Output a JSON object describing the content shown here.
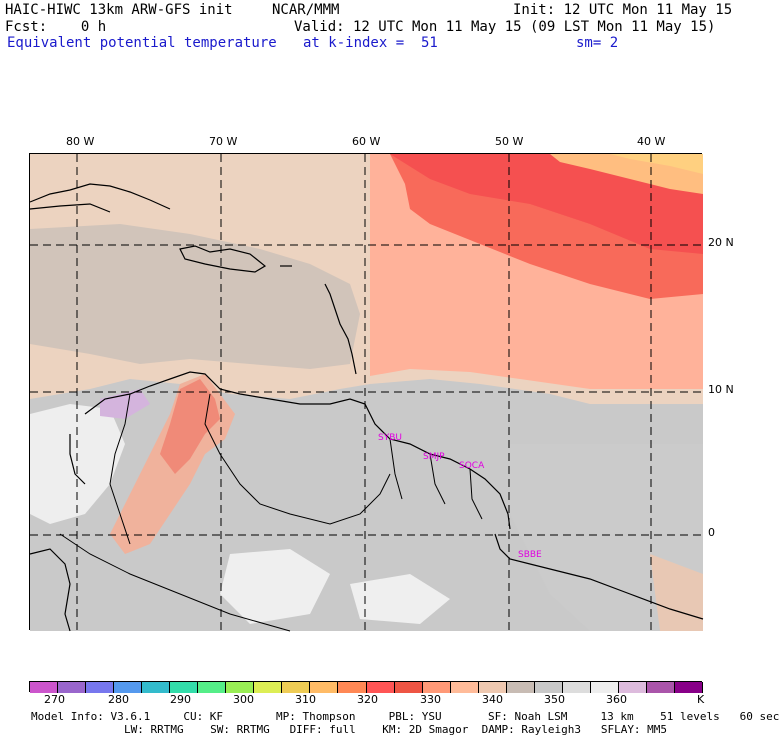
{
  "header": {
    "model": "HAIC-HIWC 13km ARW-GFS init",
    "org": "NCAR/MMM",
    "init": "Init: 12 UTC Mon 11 May 15",
    "fcst": "Fcst:    0 h",
    "valid": "Valid: 12 UTC Mon 11 May 15 (09 LST Mon 11 May 15)",
    "field": "Equivalent potential temperature",
    "level": "at k-index =  51",
    "smooth": "sm= 2"
  },
  "map": {
    "lon_labels": [
      "80 W",
      "70 W",
      "60 W",
      "50 W",
      "40 W"
    ],
    "lat_labels": [
      "20 N",
      "10 N",
      "0"
    ],
    "stations": [
      "SYBU",
      "SMJP",
      "SOCA",
      "SBBE"
    ]
  },
  "colorbar": {
    "colors": [
      "#cc55cc",
      "#9966cc",
      "#7777ee",
      "#5599ee",
      "#33bbcc",
      "#33ddaa",
      "#55ee88",
      "#99ee55",
      "#ddee55",
      "#eecc55",
      "#ffbb66",
      "#ff8855",
      "#ff5555",
      "#ee5544",
      "#ff9977",
      "#ffbb99",
      "#eec8b0",
      "#c8bcb4",
      "#c8c8c8",
      "#dddddd",
      "#eeeeee",
      "#ddbbdd",
      "#aa55aa",
      "#880088"
    ],
    "labels": [
      "270",
      "280",
      "290",
      "300",
      "310",
      "320",
      "330",
      "340",
      "350",
      "360",
      "K"
    ]
  },
  "footer": {
    "line1": "Model Info: V3.6.1     CU: KF        MP: Thompson     PBL: YSU       SF: Noah LSM     13 km    51 levels   60 sec",
    "line2": "LW: RRTMG    SW: RRTMG   DIFF: full    KM: 2D Smagor  DAMP: Rayleigh3   SFLAY: MM5"
  }
}
